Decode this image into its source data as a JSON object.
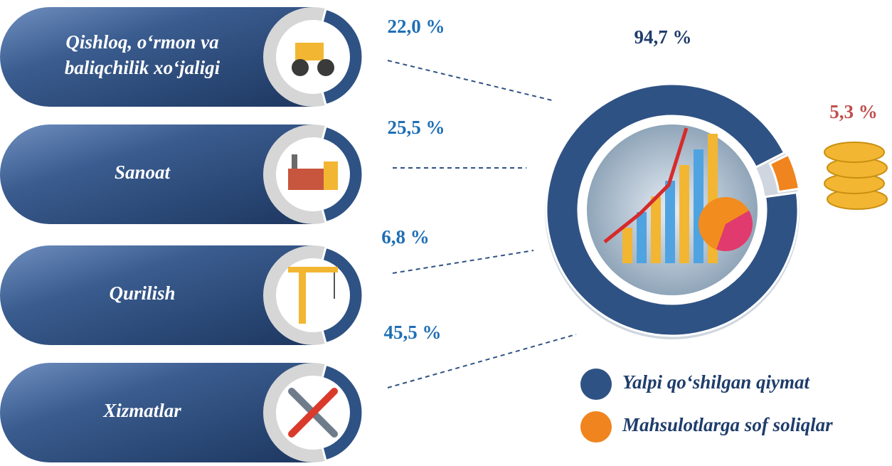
{
  "chart_data": {
    "type": "donut",
    "series": [
      {
        "name": "Yalpi qo‘shilgan qiymat",
        "color": "#2f5284",
        "values": [
          94.7
        ],
        "value_labels": [
          "94,7 %"
        ]
      },
      {
        "name": "Mahsulotlarga sof soliqlar",
        "color": "#f0841e",
        "values": [
          5.3
        ],
        "value_labels": [
          "5,3 %"
        ]
      }
    ]
  },
  "sectors": [
    {
      "name_lines": [
        "Qishloq, o‘rmon va",
        "baliqchilik xo‘jaligi"
      ],
      "value": 22.0,
      "label": "22,0 %"
    },
    {
      "name_lines": [
        "Sanoat"
      ],
      "value": 25.5,
      "label": "25,5 %"
    },
    {
      "name_lines": [
        "Qurilish"
      ],
      "value": 6.8,
      "label": "6,8 %"
    },
    {
      "name_lines": [
        "Xizmatlar"
      ],
      "value": 45.5,
      "label": "45,5 %"
    }
  ]
}
